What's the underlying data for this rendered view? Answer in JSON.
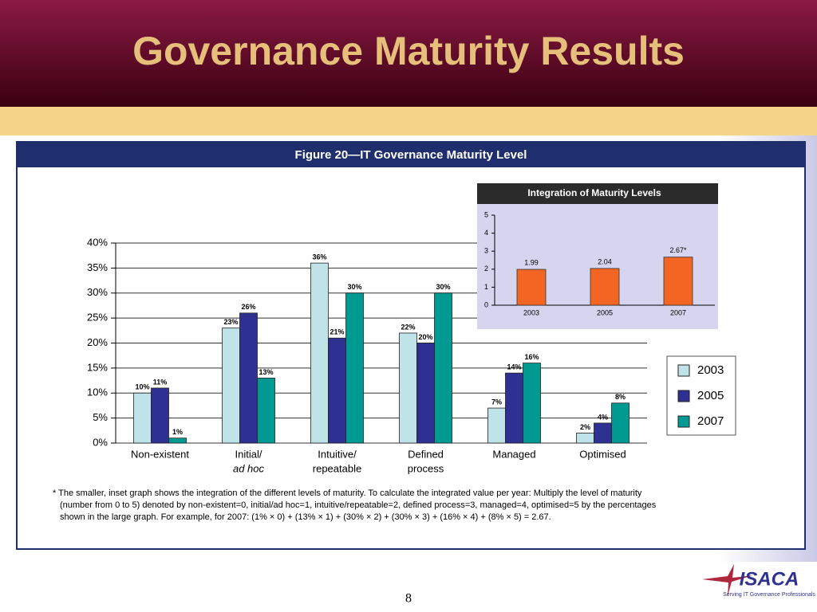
{
  "slide": {
    "title": "Governance Maturity Results",
    "page_number": "8",
    "logo": "ISACA",
    "logo_tagline": "Serving IT Governance Professionals"
  },
  "chart_data": [
    {
      "type": "bar",
      "title": "Figure 20—IT Governance Maturity Level",
      "categories": [
        [
          "Non-existent"
        ],
        [
          "Initial/",
          "ad hoc"
        ],
        [
          "Intuitive/",
          "repeatable"
        ],
        [
          "Defined",
          "process"
        ],
        [
          "Managed"
        ],
        [
          "Optimised"
        ]
      ],
      "series": [
        {
          "name": "2003",
          "color": "#bfe3e8",
          "values": [
            10,
            23,
            36,
            22,
            7,
            2
          ],
          "value_labels": [
            "10%",
            "23%",
            "36%",
            "22%",
            "7%",
            "2%"
          ]
        },
        {
          "name": "2005",
          "color": "#2e3192",
          "values": [
            11,
            26,
            21,
            20,
            14,
            4
          ],
          "value_labels": [
            "11%",
            "26%",
            "21%",
            "20%",
            "14%",
            "4%"
          ]
        },
        {
          "name": "2007",
          "color": "#009a93",
          "values": [
            1,
            13,
            30,
            30,
            16,
            8
          ],
          "value_labels": [
            "1%",
            "13%",
            "30%",
            "30%",
            "16%",
            "8%"
          ]
        }
      ],
      "ylim": [
        0,
        40
      ],
      "yticks": [
        {
          "value": 0,
          "label": "0%"
        },
        {
          "value": 5,
          "label": "5%"
        },
        {
          "value": 10,
          "label": "10%"
        },
        {
          "value": 15,
          "label": "15%"
        },
        {
          "value": 20,
          "label": "20%"
        },
        {
          "value": 25,
          "label": "25%"
        },
        {
          "value": 30,
          "label": "30%"
        },
        {
          "value": 35,
          "label": "35%"
        },
        {
          "value": 40,
          "label": "40%"
        }
      ],
      "grid": true,
      "legend": "right",
      "footnote": [
        "* The smaller, inset graph shows the integration of the different levels of maturity. To calculate the integrated value per year:  Multiply the level of maturity",
        "(number from 0 to 5) denoted by non-existent=0, initial/ad hoc=1, intuitive/repeatable=2, defined process=3, managed=4, optimised=5 by the percentages",
        "shown in the large graph. For example, for 2007:  (1% × 0) + (13% × 1) + (30% × 2) + (30% × 3) + (16% × 4) + (8% × 5) = 2.67."
      ]
    },
    {
      "type": "bar",
      "title": "Integration of Maturity Levels",
      "categories": [
        "2003",
        "2005",
        "2007"
      ],
      "values": [
        1.99,
        2.04,
        2.67
      ],
      "value_labels": [
        "1.99",
        "2.04",
        "2.67*"
      ],
      "color": "#f26522",
      "ylim": [
        0,
        5
      ],
      "yticks": [
        0,
        1,
        2,
        3,
        4,
        5
      ],
      "grid": false
    }
  ]
}
